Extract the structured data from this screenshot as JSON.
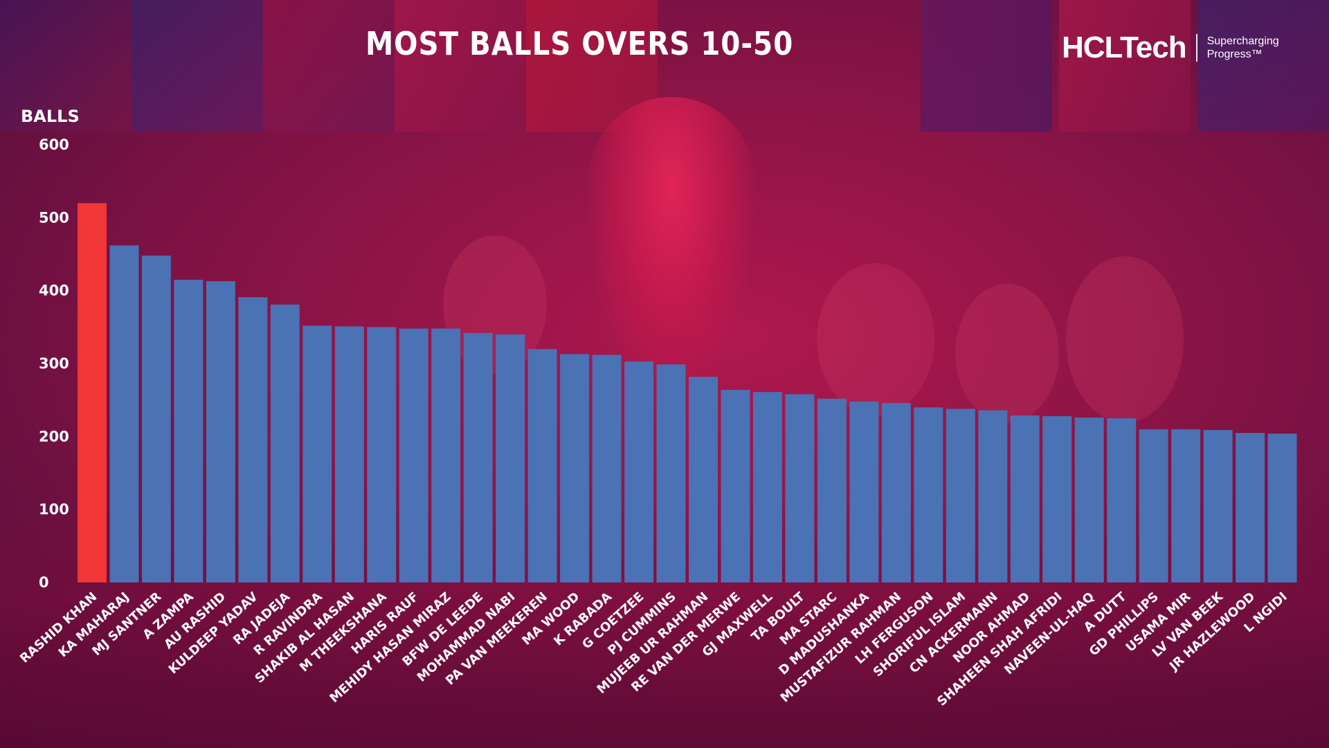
{
  "title": "MOST BALLS OVERS 10-50",
  "logo": {
    "name": "HCLTech",
    "tagline": "Supercharging Progress™"
  },
  "colors": {
    "highlight_bar": "#f23535",
    "bar": "#4a72b4",
    "text": "#ffffff"
  },
  "chart_data": {
    "type": "bar",
    "title": "MOST BALLS OVERS 10-50",
    "xlabel": "",
    "ylabel": "BALLS",
    "ylim": [
      0,
      600
    ],
    "yticks": [
      0,
      100,
      200,
      300,
      400,
      500,
      600
    ],
    "grid": false,
    "highlighted_category": "RASHID KHAN",
    "categories": [
      "RASHID KHAN",
      "KA MAHARAJ",
      "MJ SANTNER",
      "A ZAMPA",
      "AU RASHID",
      "KULDEEP YADAV",
      "RA JADEJA",
      "R RAVINDRA",
      "SHAKIB AL HASAN",
      "M THEEKSHANA",
      "HARIS RAUF",
      "MEHIDY HASAN MIRAZ",
      "BFW DE LEEDE",
      "MOHAMMAD NABI",
      "PA VAN MEEKEREN",
      "MA WOOD",
      "K RABADA",
      "G COETZEE",
      "PJ CUMMINS",
      "MUJEEB UR RAHMAN",
      "RE VAN DER MERWE",
      "GJ MAXWELL",
      "TA BOULT",
      "MA STARC",
      "D MADUSHANKA",
      "MUSTAFIZUR RAHMAN",
      "LH FERGUSON",
      "SHORIFUL ISLAM",
      "CN ACKERMANN",
      "NOOR AHMAD",
      "SHAHEEN SHAH AFRIDI",
      "NAVEEN-UL-HAQ",
      "A DUTT",
      "GD PHILLIPS",
      "USAMA MIR",
      "LV VAN BEEK",
      "JR HAZLEWOOD",
      "L NGIDI"
    ],
    "values": [
      520,
      462,
      448,
      415,
      413,
      391,
      381,
      352,
      351,
      350,
      348,
      348,
      342,
      340,
      320,
      313,
      312,
      303,
      299,
      282,
      264,
      261,
      258,
      252,
      248,
      246,
      240,
      238,
      236,
      229,
      228,
      226,
      225,
      210,
      210,
      209,
      205,
      204
    ]
  }
}
